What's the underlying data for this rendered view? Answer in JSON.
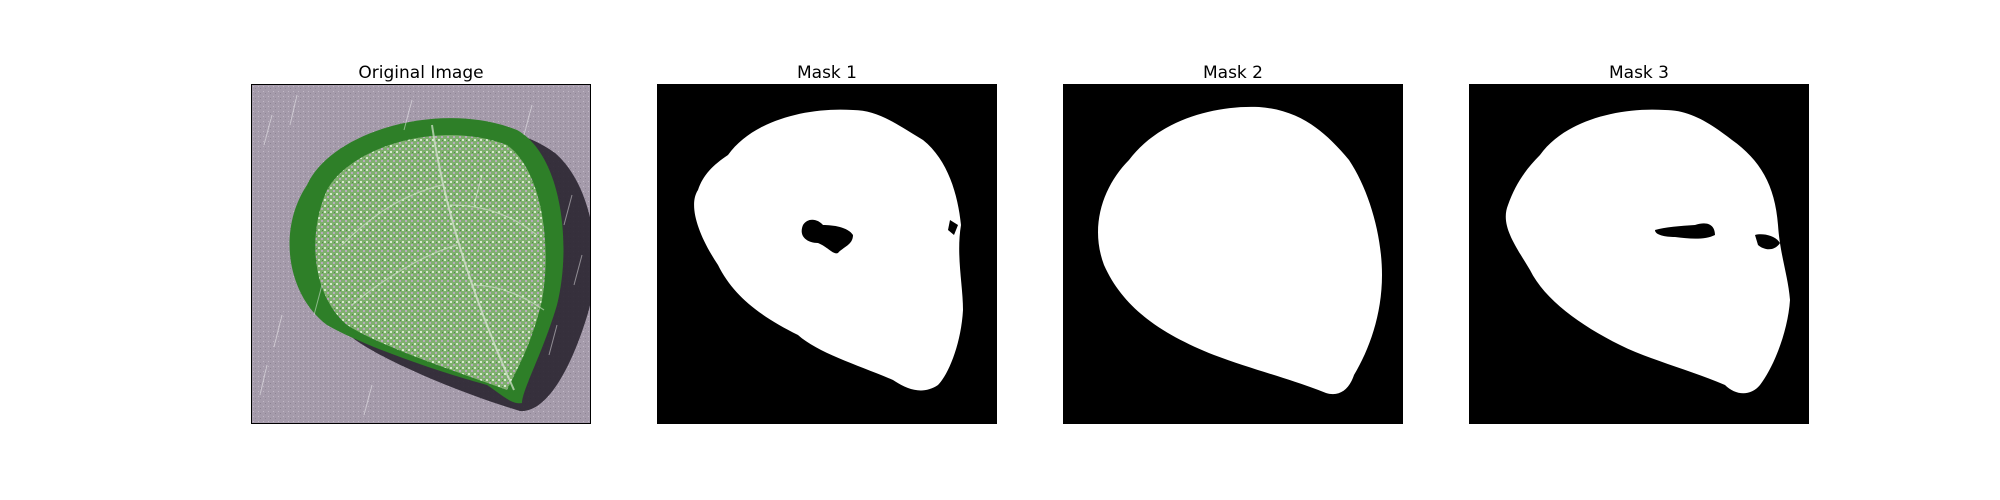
{
  "panels": [
    {
      "title": "Original Image",
      "kind": "photo"
    },
    {
      "title": "Mask 1",
      "kind": "mask"
    },
    {
      "title": "Mask 2",
      "kind": "mask"
    },
    {
      "title": "Mask 3",
      "kind": "mask"
    }
  ],
  "colors": {
    "mask_background": "#000000",
    "mask_foreground": "#ffffff",
    "photo_background": "#a49aa8",
    "leaf_dark": "#2f7a2a",
    "leaf_light": "#9fd08f"
  },
  "icons": [
    "leaf-photo",
    "segmentation-mask"
  ]
}
